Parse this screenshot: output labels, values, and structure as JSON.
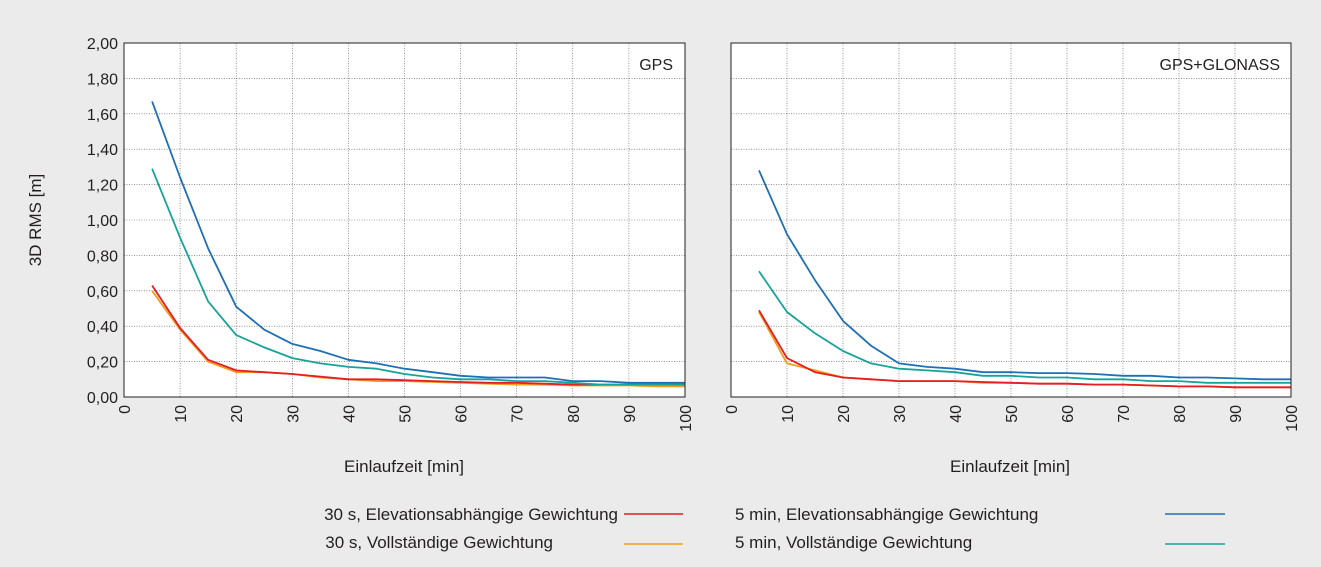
{
  "colors": {
    "background": "#ebebeb",
    "plot_bg": "#ffffff",
    "grid": "#555555",
    "series": {
      "s30_elev": "#e31e24",
      "s30_full": "#f39c1e",
      "s5_elev": "#1f6fb5",
      "s5_full": "#17a39a"
    }
  },
  "chart_data": [
    {
      "type": "line",
      "panel_label": "GPS",
      "xlabel": "Einlaufzeit [min]",
      "ylabel": "3D RMS [m]",
      "xlim": [
        0,
        100
      ],
      "ylim": [
        0,
        2.0
      ],
      "xticks": [
        "0",
        "10",
        "20",
        "30",
        "40",
        "50",
        "60",
        "70",
        "80",
        "90",
        "100"
      ],
      "yticks": [
        "0,00",
        "0,20",
        "0,40",
        "0,60",
        "0,80",
        "1,00",
        "1,20",
        "1,40",
        "1,60",
        "1,80",
        "2,00"
      ],
      "grid": true,
      "series": [
        {
          "key": "s30_full",
          "x": [
            5,
            10,
            15,
            20,
            25,
            30,
            35,
            40,
            45,
            50,
            55,
            60,
            65,
            70,
            75,
            80,
            85,
            90,
            95,
            100
          ],
          "y": [
            0.6,
            0.38,
            0.2,
            0.14,
            0.14,
            0.13,
            0.11,
            0.1,
            0.09,
            0.09,
            0.085,
            0.08,
            0.075,
            0.07,
            0.07,
            0.065,
            0.065,
            0.065,
            0.06,
            0.06
          ]
        },
        {
          "key": "s30_elev",
          "x": [
            5,
            10,
            15,
            20,
            25,
            30,
            35,
            40,
            45,
            50,
            55,
            60,
            65,
            70,
            75,
            80,
            85,
            90,
            95,
            100
          ],
          "y": [
            0.63,
            0.39,
            0.21,
            0.15,
            0.14,
            0.13,
            0.115,
            0.1,
            0.1,
            0.095,
            0.09,
            0.085,
            0.08,
            0.08,
            0.075,
            0.07,
            0.07,
            0.07,
            0.07,
            0.07
          ]
        },
        {
          "key": "s5_full",
          "x": [
            5,
            10,
            15,
            20,
            25,
            30,
            35,
            40,
            45,
            50,
            55,
            60,
            65,
            70,
            75,
            80,
            85,
            90,
            95,
            100
          ],
          "y": [
            1.29,
            0.9,
            0.54,
            0.35,
            0.28,
            0.22,
            0.19,
            0.17,
            0.16,
            0.13,
            0.11,
            0.1,
            0.1,
            0.09,
            0.09,
            0.08,
            0.07,
            0.07,
            0.07,
            0.07
          ]
        },
        {
          "key": "s5_elev",
          "x": [
            5,
            10,
            15,
            20,
            25,
            30,
            35,
            40,
            45,
            50,
            55,
            60,
            65,
            70,
            75,
            80,
            85,
            90,
            95,
            100
          ],
          "y": [
            1.67,
            1.24,
            0.84,
            0.51,
            0.38,
            0.3,
            0.26,
            0.21,
            0.19,
            0.16,
            0.14,
            0.12,
            0.11,
            0.11,
            0.11,
            0.09,
            0.09,
            0.08,
            0.08,
            0.08
          ]
        }
      ]
    },
    {
      "type": "line",
      "panel_label": "GPS+GLONASS",
      "xlabel": "Einlaufzeit [min]",
      "ylabel": "",
      "xlim": [
        0,
        100
      ],
      "ylim": [
        0,
        2.0
      ],
      "xticks": [
        "0",
        "10",
        "20",
        "30",
        "40",
        "50",
        "60",
        "70",
        "80",
        "90",
        "100"
      ],
      "yticks": [],
      "grid": true,
      "series": [
        {
          "key": "s30_full",
          "x": [
            5,
            10,
            15,
            20,
            25,
            30,
            35,
            40,
            45,
            50,
            55,
            60,
            65,
            70,
            75,
            80,
            85,
            90,
            95,
            100
          ],
          "y": [
            0.48,
            0.19,
            0.15,
            0.11,
            0.1,
            0.09,
            0.09,
            0.09,
            0.08,
            0.08,
            0.075,
            0.075,
            0.07,
            0.07,
            0.065,
            0.06,
            0.06,
            0.055,
            0.055,
            0.055
          ]
        },
        {
          "key": "s30_elev",
          "x": [
            5,
            10,
            15,
            20,
            25,
            30,
            35,
            40,
            45,
            50,
            55,
            60,
            65,
            70,
            75,
            80,
            85,
            90,
            95,
            100
          ],
          "y": [
            0.49,
            0.22,
            0.14,
            0.11,
            0.1,
            0.09,
            0.09,
            0.09,
            0.085,
            0.08,
            0.075,
            0.075,
            0.07,
            0.07,
            0.065,
            0.06,
            0.06,
            0.055,
            0.055,
            0.055
          ]
        },
        {
          "key": "s5_full",
          "x": [
            5,
            10,
            15,
            20,
            25,
            30,
            35,
            40,
            45,
            50,
            55,
            60,
            65,
            70,
            75,
            80,
            85,
            90,
            95,
            100
          ],
          "y": [
            0.71,
            0.48,
            0.36,
            0.26,
            0.19,
            0.16,
            0.15,
            0.14,
            0.12,
            0.12,
            0.11,
            0.11,
            0.1,
            0.1,
            0.09,
            0.09,
            0.08,
            0.08,
            0.08,
            0.08
          ]
        },
        {
          "key": "s5_elev",
          "x": [
            5,
            10,
            15,
            20,
            25,
            30,
            35,
            40,
            45,
            50,
            55,
            60,
            65,
            70,
            75,
            80,
            85,
            90,
            95,
            100
          ],
          "y": [
            1.28,
            0.92,
            0.66,
            0.43,
            0.29,
            0.19,
            0.17,
            0.16,
            0.14,
            0.14,
            0.135,
            0.135,
            0.13,
            0.12,
            0.12,
            0.11,
            0.11,
            0.105,
            0.1,
            0.1
          ]
        }
      ]
    }
  ],
  "legend": [
    {
      "key": "s30_elev",
      "label": "30 s, Elevationsabhängige Gewichtung"
    },
    {
      "key": "s30_full",
      "label": "30 s, Vollständige Gewichtung"
    },
    {
      "key": "s5_elev",
      "label": "5 min, Elevationsabhängige Gewichtung"
    },
    {
      "key": "s5_full",
      "label": "5 min, Vollständige Gewichtung"
    }
  ]
}
